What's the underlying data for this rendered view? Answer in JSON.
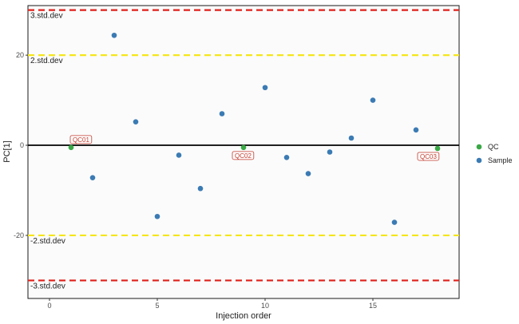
{
  "chart_data": {
    "type": "scatter",
    "xlabel": "Injection order",
    "ylabel": "PC[1]",
    "xlim": [
      -1,
      19
    ],
    "ylim": [
      -34,
      31
    ],
    "x_ticks": [
      0,
      5,
      10,
      15
    ],
    "y_ticks": [
      -20,
      0,
      20
    ],
    "grid": false,
    "legend_position": "right",
    "series": [
      {
        "name": "QC",
        "color": "#39a845",
        "points": [
          {
            "x": 1,
            "y": -0.5,
            "label": "QC01"
          },
          {
            "x": 9,
            "y": -0.5,
            "label": "QC02"
          },
          {
            "x": 18,
            "y": -0.7,
            "label": "QC03"
          }
        ]
      },
      {
        "name": "Sample",
        "color": "#3b7bb4",
        "points": [
          {
            "x": 2,
            "y": -7.2
          },
          {
            "x": 3,
            "y": 24.4
          },
          {
            "x": 4,
            "y": 5.2
          },
          {
            "x": 5,
            "y": -15.8
          },
          {
            "x": 6,
            "y": -2.2
          },
          {
            "x": 7,
            "y": -9.6
          },
          {
            "x": 8,
            "y": 7.0
          },
          {
            "x": 10,
            "y": 12.8
          },
          {
            "x": 11,
            "y": -2.7
          },
          {
            "x": 12,
            "y": -6.3
          },
          {
            "x": 13,
            "y": -1.5
          },
          {
            "x": 14,
            "y": 1.6
          },
          {
            "x": 15,
            "y": 10.0
          },
          {
            "x": 16,
            "y": -17.1
          },
          {
            "x": 17,
            "y": 3.4
          }
        ]
      }
    ],
    "reference_lines": [
      {
        "y": 30,
        "label": "3.std.dev",
        "color": "#e0201b",
        "style": "dashed"
      },
      {
        "y": 20,
        "label": "2.std.dev",
        "color": "#f5e61a",
        "style": "dashed"
      },
      {
        "y": 0,
        "label": "",
        "color": "#000000",
        "style": "solid"
      },
      {
        "y": -20,
        "label": "-2.std.dev",
        "color": "#f5e61a",
        "style": "dashed"
      },
      {
        "y": -30,
        "label": "-3.std.dev",
        "color": "#e0201b",
        "style": "dashed"
      }
    ]
  }
}
